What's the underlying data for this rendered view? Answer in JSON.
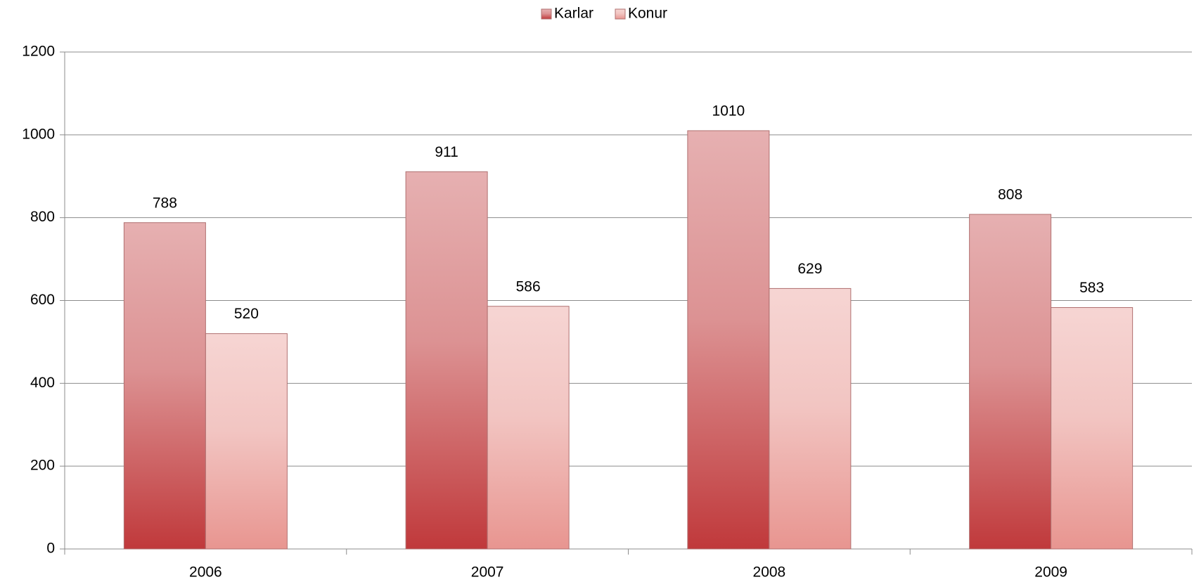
{
  "chart_data": {
    "type": "bar",
    "categories": [
      "2006",
      "2007",
      "2008",
      "2009"
    ],
    "series": [
      {
        "name": "Karlar",
        "color": "#c0393b",
        "values": [
          788,
          911,
          1010,
          808
        ]
      },
      {
        "name": "Konur",
        "color": "#e89590",
        "values": [
          520,
          586,
          629,
          583
        ]
      }
    ],
    "ylim": [
      0,
      1200
    ],
    "yticks": [
      0,
      200,
      400,
      600,
      800,
      1000,
      1200
    ],
    "grid": true,
    "legend": "top"
  }
}
